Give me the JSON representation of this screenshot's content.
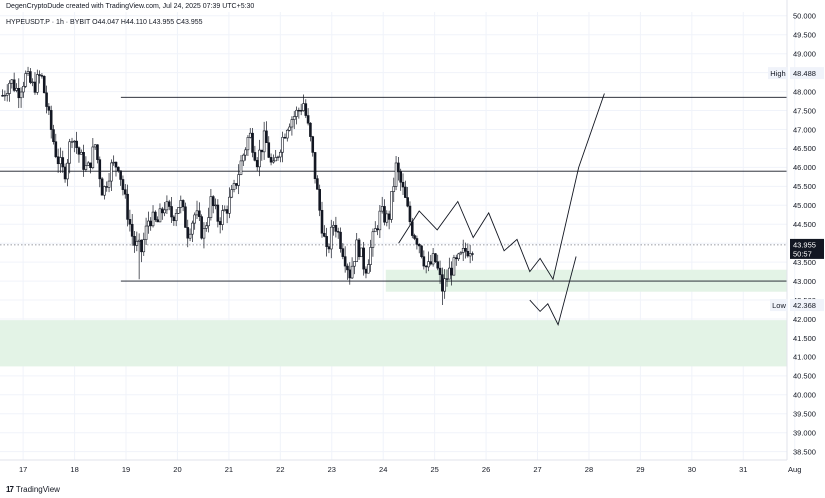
{
  "header": {
    "credit": "DegenCryptoDude created with TradingView.com, Jul 24, 2025 07:39 UTC+5:30",
    "symbol": "HYPEUSDT.P · 1h · BYBIT",
    "ohlc": "O44.047 H44.110 L43.955 C43.955"
  },
  "footer": {
    "brand": "TradingView"
  },
  "colors": {
    "zone": "#e3f3e6",
    "line": "#131722",
    "grid": "#f0f3fa",
    "price_tag": "#131722"
  },
  "chart_data": {
    "type": "candlestick",
    "x_ticks": [
      "17",
      "18",
      "19",
      "20",
      "21",
      "22",
      "23",
      "24",
      "25",
      "26",
      "27",
      "28",
      "29",
      "30",
      "31",
      "Aug"
    ],
    "y_ticks": [
      "38.500",
      "39.000",
      "39.500",
      "40.000",
      "40.500",
      "41.000",
      "41.500",
      "42.000",
      "42.500",
      "43.000",
      "43.500",
      "44.000",
      "44.500",
      "45.000",
      "45.500",
      "46.000",
      "46.500",
      "47.000",
      "47.500",
      "48.000",
      "48.500",
      "49.000",
      "49.500",
      "50.000"
    ],
    "ylim": [
      38.28,
      50.1
    ],
    "xlim": [
      16.55,
      31.85
    ],
    "price_labels": {
      "high_text": "High",
      "high_value": "48.488",
      "high_y": 48.488,
      "low_text": "Low",
      "low_value": "42.368",
      "low_y": 42.368,
      "last_value": "43.955",
      "last_y": 43.955,
      "countdown": "50:57"
    },
    "horizontal_lines": [
      {
        "y": 47.85,
        "x_start": 18.9,
        "x_end": 31.85
      },
      {
        "y": 45.9,
        "x_start": 16.55,
        "x_end": 31.85
      },
      {
        "y": 43.0,
        "x_start": 18.9,
        "x_end": 31.85
      }
    ],
    "dotted_line_y": 43.955,
    "zones": [
      {
        "y_top": 43.3,
        "y_bottom": 42.72,
        "x_start": 24.05
      },
      {
        "y_top": 41.97,
        "y_bottom": 40.75,
        "x_start": 16.55
      }
    ],
    "projection_paths": [
      [
        [
          24.3,
          44.0
        ],
        [
          24.7,
          44.85
        ],
        [
          25.05,
          44.35
        ],
        [
          25.45,
          45.1
        ],
        [
          25.75,
          44.15
        ],
        [
          26.05,
          44.8
        ],
        [
          26.35,
          43.8
        ],
        [
          26.6,
          44.1
        ],
        [
          26.85,
          43.25
        ],
        [
          27.05,
          43.6
        ],
        [
          27.3,
          43.05
        ],
        [
          27.8,
          46.0
        ],
        [
          28.3,
          47.95
        ]
      ],
      [
        [
          26.85,
          42.5
        ],
        [
          27.05,
          42.2
        ],
        [
          27.2,
          42.4
        ],
        [
          27.4,
          41.85
        ],
        [
          27.75,
          43.65
        ]
      ]
    ],
    "price_anchors": [
      [
        16.6,
        47.9
      ],
      [
        16.75,
        48.3
      ],
      [
        16.9,
        48.0
      ],
      [
        17.05,
        48.4
      ],
      [
        17.2,
        48.1
      ],
      [
        17.35,
        48.45
      ],
      [
        17.5,
        47.3
      ],
      [
        17.65,
        46.3
      ],
      [
        17.8,
        45.8
      ],
      [
        17.95,
        46.9
      ],
      [
        18.1,
        46.3
      ],
      [
        18.25,
        45.9
      ],
      [
        18.4,
        46.6
      ],
      [
        18.55,
        45.3
      ],
      [
        18.7,
        46.0
      ],
      [
        18.85,
        46.1
      ],
      [
        19.0,
        45.0
      ],
      [
        19.15,
        44.0
      ],
      [
        19.3,
        43.8
      ],
      [
        19.45,
        44.7
      ],
      [
        19.6,
        44.5
      ],
      [
        19.75,
        45.0
      ],
      [
        19.9,
        44.7
      ],
      [
        20.05,
        45.1
      ],
      [
        20.2,
        44.3
      ],
      [
        20.35,
        44.8
      ],
      [
        20.5,
        44.2
      ],
      [
        20.65,
        45.1
      ],
      [
        20.8,
        44.6
      ],
      [
        20.95,
        44.9
      ],
      [
        21.1,
        45.4
      ],
      [
        21.25,
        46.2
      ],
      [
        21.4,
        46.9
      ],
      [
        21.55,
        46.2
      ],
      [
        21.7,
        46.8
      ],
      [
        21.85,
        45.9
      ],
      [
        22.0,
        46.6
      ],
      [
        22.15,
        47.2
      ],
      [
        22.3,
        47.4
      ],
      [
        22.45,
        47.7
      ],
      [
        22.6,
        46.6
      ],
      [
        22.75,
        45.0
      ],
      [
        22.9,
        43.7
      ],
      [
        23.05,
        44.6
      ],
      [
        23.2,
        43.9
      ],
      [
        23.35,
        43.2
      ],
      [
        23.5,
        44.0
      ],
      [
        23.65,
        43.3
      ],
      [
        23.8,
        44.1
      ],
      [
        23.95,
        44.8
      ],
      [
        24.1,
        44.6
      ],
      [
        24.25,
        46.0
      ],
      [
        24.4,
        45.3
      ],
      [
        24.55,
        44.4
      ],
      [
        24.7,
        44.0
      ],
      [
        24.85,
        43.3
      ],
      [
        25.0,
        43.6
      ],
      [
        25.15,
        42.8
      ],
      [
        25.3,
        43.3
      ],
      [
        25.45,
        43.5
      ],
      [
        25.6,
        43.8
      ],
      [
        25.75,
        43.95
      ]
    ]
  }
}
